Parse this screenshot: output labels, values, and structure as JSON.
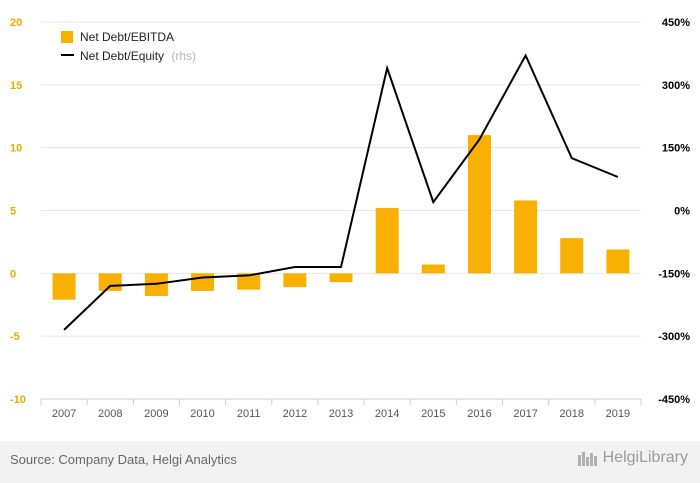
{
  "chart_data": {
    "type": "bar+line",
    "categories": [
      "2007",
      "2008",
      "2009",
      "2010",
      "2011",
      "2012",
      "2013",
      "2014",
      "2015",
      "2016",
      "2017",
      "2018",
      "2019"
    ],
    "series": [
      {
        "name": "Net Debt/EBITDA",
        "type": "bar",
        "axis": "left",
        "color": "#f9b000",
        "values": [
          -2.1,
          -1.4,
          -1.8,
          -1.4,
          -1.3,
          -1.1,
          -0.7,
          5.2,
          0.7,
          11.0,
          5.8,
          2.8,
          1.9
        ]
      },
      {
        "name": "Net Debt/Equity",
        "type": "line",
        "axis": "right",
        "color": "#000000",
        "values": [
          -285,
          -180,
          -175,
          -160,
          -155,
          -135,
          -135,
          340,
          20,
          170,
          370,
          125,
          80
        ]
      }
    ],
    "left_axis": {
      "min": -10,
      "max": 20,
      "ticks": [
        "20",
        "15",
        "10",
        "5",
        "0",
        "-5",
        "-10"
      ]
    },
    "right_axis": {
      "min": -450,
      "max": 450,
      "ticks": [
        "450%",
        "300%",
        "150%",
        "0%",
        "-150%",
        "-300%",
        "-450%"
      ]
    },
    "legend": {
      "position": "top-left",
      "note": "(rhs)"
    },
    "grid": true
  },
  "footer": {
    "source": "Source: Company Data, Helgi Analytics",
    "logo_text": "HelgiLibrary"
  }
}
